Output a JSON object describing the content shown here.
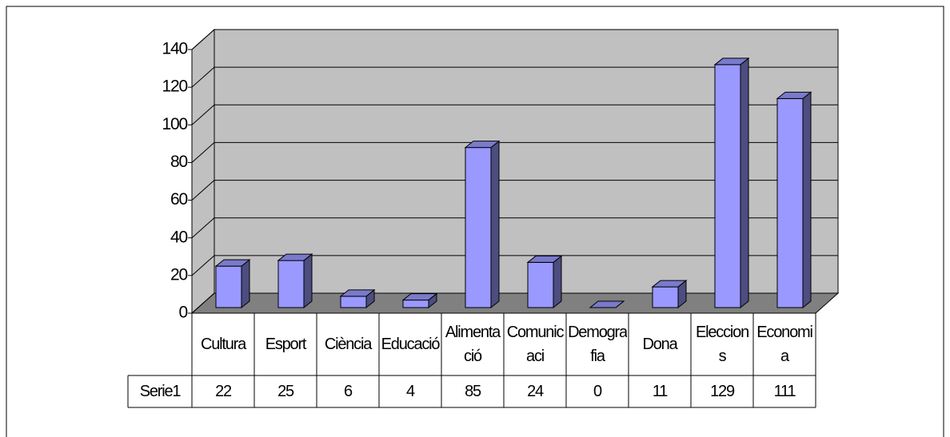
{
  "chart_data": {
    "type": "bar3d",
    "categories": [
      "Cultura",
      "Esport",
      "Ciència",
      "Educació",
      "Alimentació",
      "Comunicaci",
      "Demografia",
      "Dona",
      "Eleccions",
      "Economia"
    ],
    "series": [
      {
        "name": "Serie1",
        "color": "#9999ff",
        "values": [
          22,
          25,
          6,
          4,
          85,
          24,
          0,
          11,
          129,
          111
        ]
      }
    ],
    "ylim": [
      0,
      140
    ],
    "yticks": [
      0,
      20,
      40,
      60,
      80,
      100,
      120,
      140
    ],
    "grid": true
  }
}
